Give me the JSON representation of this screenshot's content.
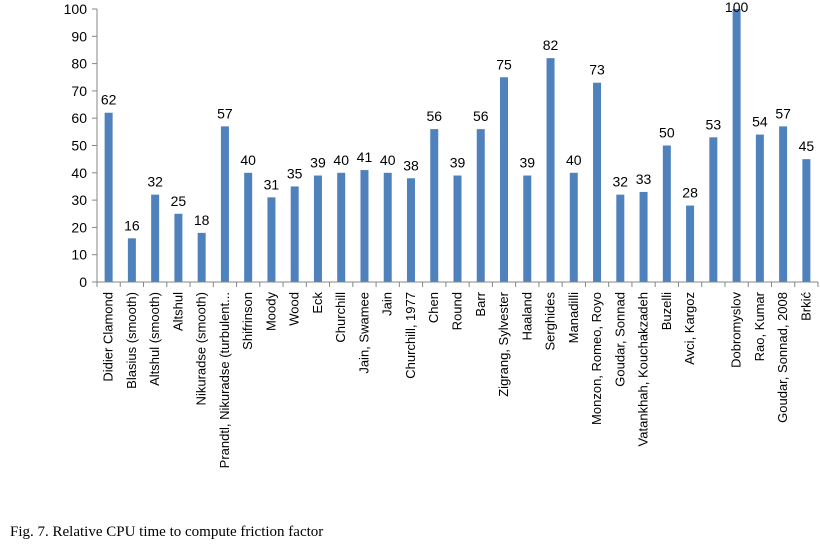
{
  "caption": "Fig. 7. Relative CPU time to compute friction factor",
  "colors": {
    "bar": "#4F81BD",
    "axis": "#878787"
  },
  "chart_data": {
    "type": "bar",
    "title": "",
    "xlabel": "",
    "ylabel": "",
    "ylim": [
      0,
      100
    ],
    "yticks": [
      0,
      10,
      20,
      30,
      40,
      50,
      60,
      70,
      80,
      90,
      100
    ],
    "grid": false,
    "legend": "none",
    "categories": [
      "Didier Clamond",
      "Blasius (smooth)",
      "Altshul (smooth)",
      "Altshul",
      "Nikuradse (smooth)",
      "Prandtl, Nikuradse (turbulent...",
      "Shifrinson",
      "Moody",
      "Wood",
      "Eck",
      "Churchill",
      "Jain, Swamee",
      "Jain",
      "Churchill, 1977",
      "Chen",
      "Round",
      "Barr",
      "Zigrang, Sylvester",
      "Haaland",
      "Serghides",
      "Manadilli",
      "Monzon, Romeo, Royo",
      "Goudar, Sonnad",
      "Vatankhah, Kouchakzadeh",
      "Buzelli",
      "Avci, Kargoz",
      "",
      "Dobromyslov",
      "Rao, Kumar",
      "Goudar, Sonnad, 2008",
      "Brkić"
    ],
    "values": [
      62,
      16,
      32,
      25,
      18,
      57,
      40,
      31,
      35,
      39,
      40,
      41,
      40,
      38,
      56,
      39,
      56,
      75,
      39,
      82,
      40,
      73,
      32,
      33,
      50,
      28,
      53,
      100,
      54,
      57,
      45
    ],
    "value_labels": [
      "62",
      "16",
      "32",
      "25",
      "18",
      "57",
      "40",
      "31",
      "35",
      "39",
      "40",
      "41",
      "40",
      "38",
      "56",
      "39",
      "56",
      "75",
      "39",
      "82",
      "40",
      "73",
      "32",
      "33",
      "50",
      "28",
      "53",
      "100",
      "54",
      "57",
      "45"
    ]
  }
}
